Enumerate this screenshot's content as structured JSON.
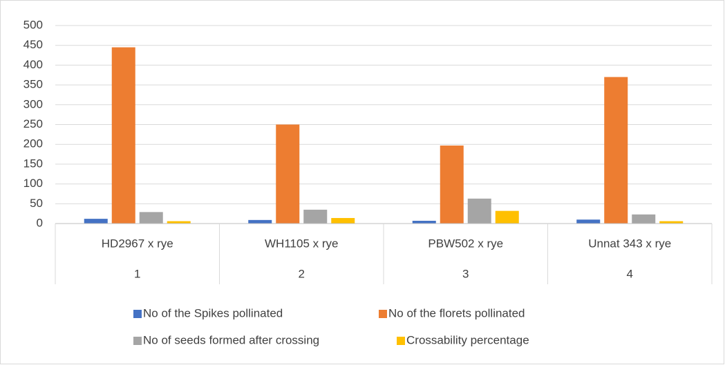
{
  "chart_data": {
    "type": "bar",
    "categories": [
      "HD2967 x rye",
      "WH1105 x rye",
      "PBW502 x rye",
      "Unnat 343 x rye"
    ],
    "category_numbers": [
      1,
      2,
      3,
      4
    ],
    "series": [
      {
        "name": "No of the Spikes pollinated",
        "color": "#4472c4",
        "values": [
          12,
          9,
          7,
          10
        ]
      },
      {
        "name": "No of the florets pollinated",
        "color": "#ed7d31",
        "values": [
          445,
          250,
          197,
          370
        ]
      },
      {
        "name": "No of seeds formed after crossing",
        "color": "#a5a5a5",
        "values": [
          29,
          35,
          63,
          23
        ]
      },
      {
        "name": "Crossability percentage",
        "color": "#ffc000",
        "values": [
          6,
          14,
          32,
          6
        ]
      }
    ],
    "ylim": [
      0,
      500
    ],
    "yticks": [
      0,
      50,
      100,
      150,
      200,
      250,
      300,
      350,
      400,
      450,
      500
    ],
    "grid": true,
    "legend": "bottom"
  }
}
